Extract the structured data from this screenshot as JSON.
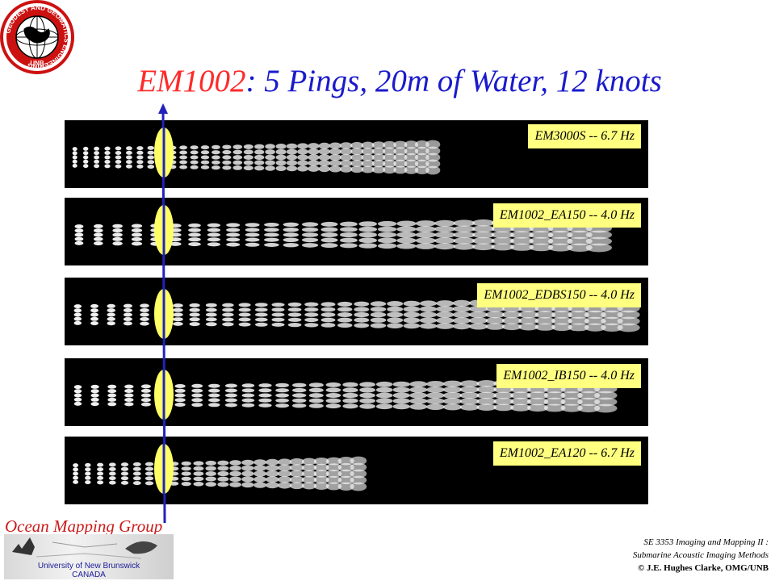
{
  "logo": {
    "ring_text": "GEODESY AND GEOMATICS ENGINEERING",
    "bottom_text": "UNB"
  },
  "title": {
    "model": "EM1002",
    "rest": ": 5 Pings, 20m of Water, 12 knots"
  },
  "panels": [
    {
      "label": "EM3000S -- 6.7 Hz",
      "rows": 5,
      "columns": 34,
      "extent_fraction": 0.65,
      "boat_offset": 0.0
    },
    {
      "label": "EM1002_EA150 -- 4.0 Hz",
      "rows": 5,
      "columns": 28,
      "extent_fraction": 0.95,
      "boat_offset": 0.0
    },
    {
      "label": "EM1002_EDBS150 -- 4.0 Hz",
      "rows": 5,
      "columns": 34,
      "extent_fraction": 1.0,
      "boat_offset": 0.5
    },
    {
      "label": "EM1002_IB150 -- 4.0 Hz",
      "rows": 5,
      "columns": 32,
      "extent_fraction": 0.96,
      "boat_offset": 0.5
    },
    {
      "label": "EM1002_EA120 -- 6.7 Hz",
      "rows": 5,
      "columns": 24,
      "extent_fraction": 0.52,
      "boat_offset": 0.0
    }
  ],
  "footer": {
    "group_name": "Ocean Mapping Group",
    "university": "University of New Brunswick",
    "country": "CANADA",
    "course_line1": "SE 3353 Imaging and Mapping II :",
    "course_line2": "Submarine Acoustic Imaging Methods",
    "copyright": "© J.E. Hughes Clarke, OMG/UNB"
  },
  "colors": {
    "title_model": "#ff2a2a",
    "title_rest": "#1a1acc",
    "label_bg": "#ffff80",
    "boat": "#ffff66",
    "track_line": "#2222bb",
    "group_name": "#cc1a1a"
  }
}
